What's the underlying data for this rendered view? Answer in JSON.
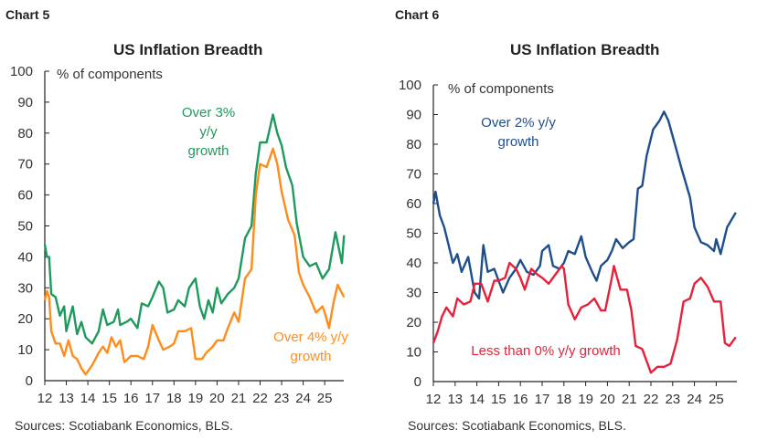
{
  "chart_data": [
    {
      "id": "chart5",
      "type": "line",
      "chart_label": "Chart 5",
      "title": "US Inflation Breadth",
      "ylabel": "% of components",
      "ylim": [
        0,
        100
      ],
      "yticks": [
        0,
        10,
        20,
        30,
        40,
        50,
        60,
        70,
        80,
        90,
        100
      ],
      "xticks": [
        "12",
        "13",
        "14",
        "15",
        "16",
        "17",
        "18",
        "19",
        "20",
        "21",
        "22",
        "23",
        "24",
        "25"
      ],
      "source": "Sources: Scotiabank Economics, BLS.",
      "series": [
        {
          "name": "Over 3% y/y growth",
          "label_lines": [
            "Over 3%",
            "y/y",
            "growth"
          ],
          "color": "#1e9a5c",
          "x": [
            12.0,
            12.1,
            12.2,
            12.3,
            12.5,
            12.7,
            12.9,
            13.0,
            13.3,
            13.5,
            13.7,
            13.9,
            14.2,
            14.5,
            14.7,
            14.9,
            15.2,
            15.4,
            15.5,
            15.8,
            16.0,
            16.3,
            16.5,
            16.8,
            17.0,
            17.3,
            17.5,
            17.7,
            18.0,
            18.2,
            18.5,
            18.7,
            19.0,
            19.2,
            19.4,
            19.6,
            19.8,
            20.0,
            20.2,
            20.5,
            20.8,
            21.0,
            21.3,
            21.6,
            21.8,
            22.0,
            22.3,
            22.6,
            22.8,
            23.0,
            23.2,
            23.5,
            23.7,
            24.0,
            24.3,
            24.6,
            24.9,
            25.2,
            25.5,
            25.8,
            25.9
          ],
          "y": [
            44,
            40,
            40,
            28,
            27,
            21,
            24,
            16,
            24,
            15,
            19,
            14,
            12,
            16,
            23,
            18,
            19,
            23,
            18,
            19,
            20,
            17,
            25,
            24,
            27,
            32,
            30,
            22,
            23,
            26,
            24,
            30,
            33,
            24,
            20,
            26,
            22,
            30,
            25,
            28,
            30,
            33,
            46,
            50,
            67,
            77,
            77,
            86,
            80,
            76,
            69,
            63,
            51,
            40,
            37,
            38,
            33,
            36,
            48,
            38,
            47
          ]
        },
        {
          "name": "Over 4% y/y growth",
          "label_lines": [
            "Over 4% y/y",
            "growth"
          ],
          "color": "#ff8c1a",
          "x": [
            12.0,
            12.1,
            12.2,
            12.3,
            12.5,
            12.7,
            12.9,
            13.1,
            13.3,
            13.5,
            13.7,
            13.9,
            14.2,
            14.5,
            14.7,
            14.9,
            15.1,
            15.3,
            15.5,
            15.7,
            16.0,
            16.3,
            16.6,
            16.8,
            17.0,
            17.3,
            17.5,
            17.8,
            18.0,
            18.2,
            18.5,
            18.8,
            19.0,
            19.3,
            19.5,
            19.8,
            20.0,
            20.3,
            20.5,
            20.8,
            21.0,
            21.3,
            21.6,
            21.8,
            22.0,
            22.3,
            22.6,
            22.8,
            23.0,
            23.3,
            23.6,
            23.8,
            24.0,
            24.3,
            24.6,
            24.9,
            25.0,
            25.2,
            25.4,
            25.6,
            25.9
          ],
          "y": [
            26,
            29,
            27,
            16,
            12,
            12,
            8,
            13,
            8,
            7,
            4,
            2,
            5,
            9,
            11,
            9,
            14,
            11,
            13,
            6,
            8,
            8,
            7,
            11,
            18,
            13,
            10,
            11,
            12,
            16,
            16,
            17,
            7,
            7,
            9,
            11,
            13,
            13,
            17,
            22,
            19,
            33,
            36,
            60,
            70,
            69,
            75,
            70,
            61,
            52,
            47,
            35,
            31,
            27,
            22,
            24,
            22,
            17,
            25,
            31,
            27
          ]
        }
      ]
    },
    {
      "id": "chart6",
      "type": "line",
      "chart_label": "Chart 6",
      "title": "US Inflation Breadth",
      "ylabel": "% of components",
      "ylim": [
        0,
        100
      ],
      "yticks": [
        0,
        10,
        20,
        30,
        40,
        50,
        60,
        70,
        80,
        90,
        100
      ],
      "xticks": [
        "12",
        "13",
        "14",
        "15",
        "16",
        "17",
        "18",
        "19",
        "20",
        "21",
        "22",
        "23",
        "24",
        "25"
      ],
      "source": "Sources: Scotiabank Economics, BLS.",
      "series": [
        {
          "name": "Over 2% y/y growth",
          "label_lines": [
            "Over 2% y/y",
            "growth"
          ],
          "color": "#1f4e8c",
          "x": [
            12.0,
            12.1,
            12.3,
            12.5,
            12.7,
            12.9,
            13.1,
            13.3,
            13.6,
            13.9,
            14.1,
            14.3,
            14.5,
            14.8,
            15.0,
            15.2,
            15.5,
            15.8,
            16.0,
            16.3,
            16.6,
            16.9,
            17.0,
            17.3,
            17.5,
            17.8,
            18.0,
            18.2,
            18.5,
            18.8,
            19.0,
            19.3,
            19.5,
            19.7,
            20.0,
            20.2,
            20.4,
            20.7,
            21.0,
            21.2,
            21.4,
            21.6,
            21.8,
            22.1,
            22.4,
            22.6,
            22.8,
            23.1,
            23.4,
            23.8,
            24.0,
            24.3,
            24.6,
            24.9,
            25.0,
            25.2,
            25.5,
            25.9
          ],
          "y": [
            60,
            64,
            56,
            52,
            46,
            40,
            43,
            37,
            42,
            30,
            28,
            46,
            37,
            38,
            34,
            30,
            35,
            38,
            41,
            37,
            36,
            39,
            44,
            46,
            39,
            38,
            40,
            44,
            43,
            49,
            42,
            37,
            34,
            39,
            41,
            44,
            48,
            45,
            47,
            48,
            65,
            66,
            76,
            85,
            88,
            91,
            88,
            80,
            72,
            62,
            52,
            47,
            46,
            44,
            48,
            43,
            52,
            57
          ]
        },
        {
          "name": "Less than 0% y/y growth",
          "label_lines": [
            "Less than 0% y/y growth"
          ],
          "color": "#e8203a",
          "x": [
            12.0,
            12.2,
            12.4,
            12.6,
            12.9,
            13.1,
            13.4,
            13.7,
            13.9,
            14.2,
            14.5,
            14.8,
            15.0,
            15.3,
            15.5,
            15.8,
            16.0,
            16.2,
            16.5,
            16.8,
            17.0,
            17.3,
            17.6,
            17.9,
            18.0,
            18.2,
            18.5,
            18.8,
            19.1,
            19.4,
            19.7,
            19.9,
            20.2,
            20.3,
            20.6,
            20.9,
            21.1,
            21.3,
            21.6,
            21.8,
            22.0,
            22.3,
            22.6,
            22.9,
            23.2,
            23.5,
            23.8,
            24.0,
            24.3,
            24.6,
            24.9,
            25.2,
            25.4,
            25.6,
            25.9
          ],
          "y": [
            13,
            17,
            22,
            25,
            22,
            28,
            26,
            27,
            33,
            33,
            27,
            34,
            34,
            35,
            40,
            38,
            35,
            31,
            38,
            36,
            35,
            33,
            36,
            39,
            38,
            26,
            21,
            25,
            26,
            28,
            24,
            24,
            35,
            39,
            31,
            31,
            24,
            12,
            11,
            7,
            3,
            5,
            5,
            6,
            14,
            27,
            28,
            33,
            35,
            32,
            27,
            27,
            13,
            12,
            15
          ]
        }
      ]
    }
  ]
}
